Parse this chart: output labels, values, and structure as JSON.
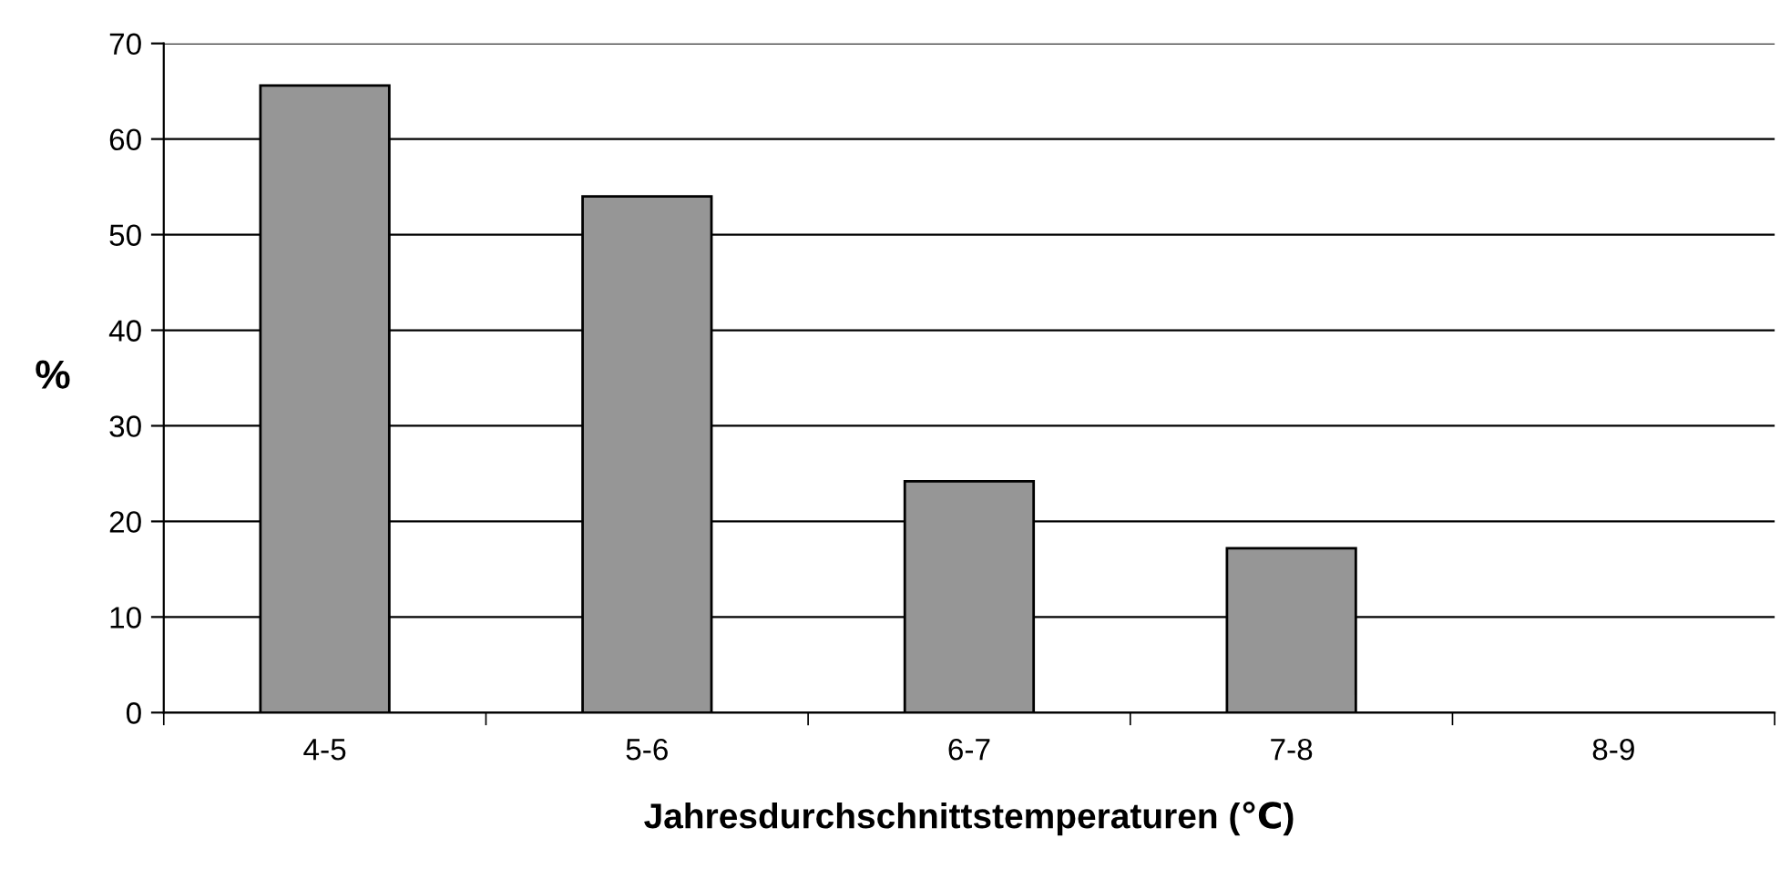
{
  "chart_data": {
    "type": "bar",
    "xlabel": "Jahresdurchschnittstemperaturen (℃)",
    "ylabel": "%",
    "categories": [
      "4-5",
      "5-6",
      "6-7",
      "7-8",
      "8-9"
    ],
    "values": [
      65.6,
      54.0,
      24.2,
      17.2,
      0
    ],
    "color": "#969696",
    "ylim": [
      0,
      70
    ],
    "yticks": [
      0,
      10,
      20,
      30,
      40,
      50,
      60,
      70
    ],
    "grid": "y",
    "legend": false
  }
}
